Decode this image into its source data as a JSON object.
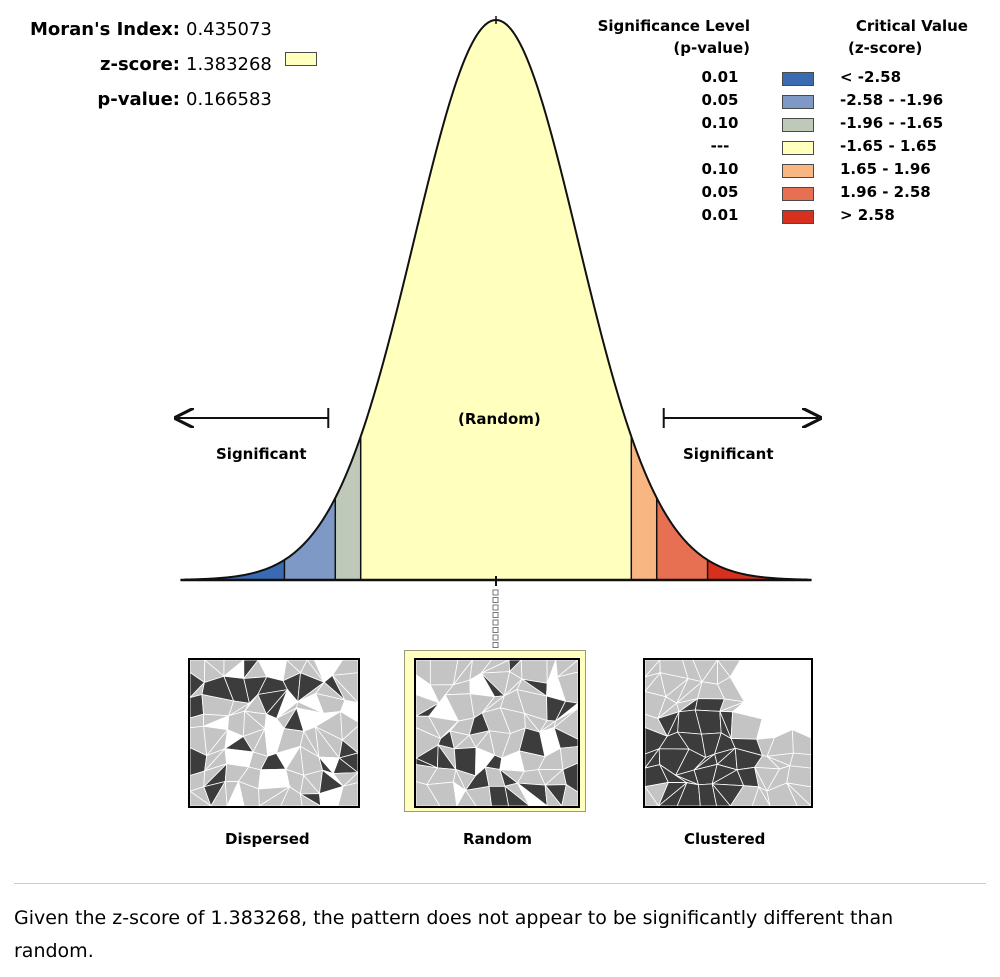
{
  "stats": {
    "morans_index_label": "Moran's Index:",
    "morans_index_value": "0.435073",
    "z_score_label": "z-score:",
    "z_score_value": "1.383268",
    "p_value_label": "p-value:",
    "p_value_value": "0.166583"
  },
  "legend": {
    "sig_header_line1": "Significance Level",
    "sig_header_line2": "(p-value)",
    "crit_header_line1": "Critical Value",
    "crit_header_line2": "(z-score)",
    "rows": [
      {
        "p": "0.01",
        "z": "< -2.58",
        "color": "#3a6ab2"
      },
      {
        "p": "0.05",
        "z": "-2.58 - -1.96",
        "color": "#7f99c6"
      },
      {
        "p": "0.10",
        "z": "-1.96 - -1.65",
        "color": "#bfc9b9"
      },
      {
        "p": "---",
        "z": "-1.65 - 1.65",
        "color": "#ffffbe"
      },
      {
        "p": "0.10",
        "z": "1.65 - 1.96",
        "color": "#f8b683"
      },
      {
        "p": "0.05",
        "z": "1.96 - 2.58",
        "color": "#e87052"
      },
      {
        "p": "0.01",
        "z": "> 2.58",
        "color": "#d7301f"
      }
    ]
  },
  "chart_data": {
    "type": "area",
    "title": "",
    "xlabel": "",
    "ylabel": "",
    "distribution": "standard normal",
    "xlim": [
      -3.8,
      3.8
    ],
    "bands": [
      {
        "from": -3.8,
        "to": -2.58,
        "color": "#3a6ab2"
      },
      {
        "from": -2.58,
        "to": -1.96,
        "color": "#7f99c6"
      },
      {
        "from": -1.96,
        "to": -1.65,
        "color": "#bfc9b9"
      },
      {
        "from": -1.65,
        "to": 1.65,
        "color": "#ffffbe"
      },
      {
        "from": 1.65,
        "to": 1.96,
        "color": "#f8b683"
      },
      {
        "from": 1.96,
        "to": 2.58,
        "color": "#e87052"
      },
      {
        "from": 2.58,
        "to": 3.8,
        "color": "#d7301f"
      }
    ],
    "observed_z": 1.383268,
    "annotations": {
      "center": "(Random)",
      "left": "Significant",
      "right": "Significant"
    }
  },
  "maps": {
    "dispersed": "Dispersed",
    "random": "Random",
    "clustered": "Clustered"
  },
  "summary": "Given the z-score of 1.383268, the pattern does not appear to be significantly different than random."
}
